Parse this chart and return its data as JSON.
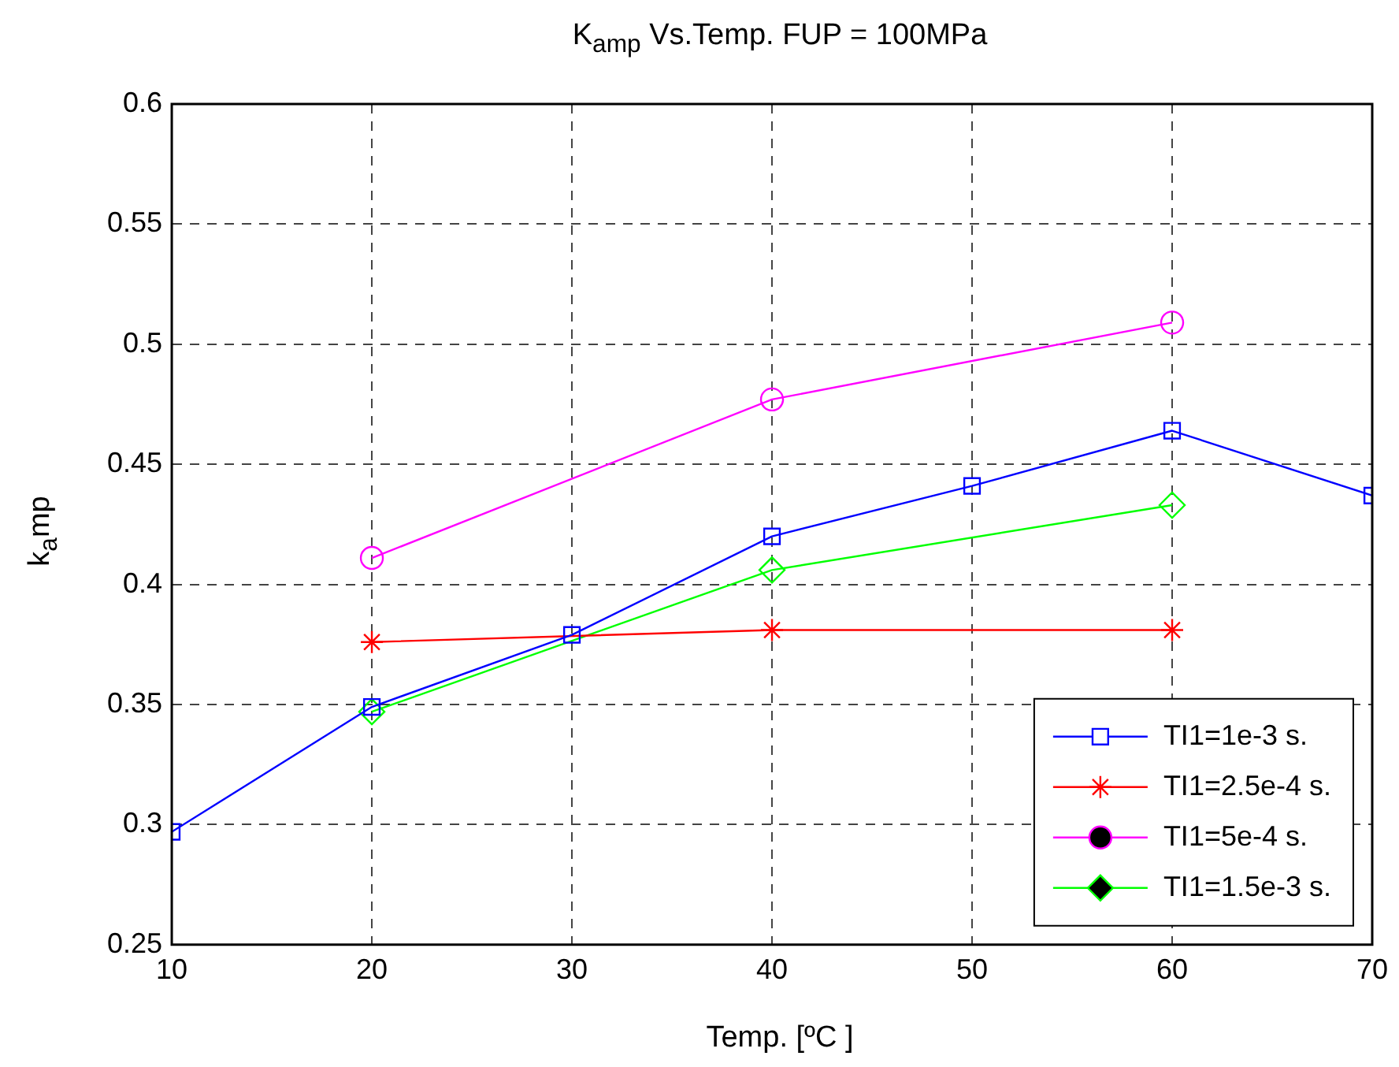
{
  "chart_data": {
    "type": "line",
    "title": "K$_{amp}$ Vs.Temp. FUP = 100MPa",
    "xlabel": "Temp. [ºC ]",
    "ylabel": "k$_{a}$mp",
    "xlim": [
      10,
      70
    ],
    "xticks": [
      10,
      20,
      30,
      40,
      50,
      60,
      70
    ],
    "ylim": [
      0.25,
      0.6
    ],
    "yticks": [
      0.25,
      0.3,
      0.35,
      0.4,
      0.45,
      0.5,
      0.55,
      0.6
    ],
    "grid": true,
    "legend": "bottom right",
    "line_style": "solid",
    "series": [
      {
        "name": "TI1=1e-3 s.",
        "color": "#0000ff",
        "marker": "square",
        "x": [
          10,
          20,
          30,
          40,
          50,
          60,
          70
        ],
        "values": [
          0.297,
          0.349,
          0.379,
          0.42,
          0.441,
          0.464,
          0.437
        ]
      },
      {
        "name": "TI1=2.5e-4 s.",
        "color": "#ff0000",
        "marker": "cross",
        "x": [
          20,
          40,
          60
        ],
        "values": [
          0.376,
          0.381,
          0.381
        ]
      },
      {
        "name": "TI1=5e-4 s.",
        "color": "#ff00ff",
        "marker": "circle",
        "x": [
          20,
          40,
          60
        ],
        "values": [
          0.411,
          0.477,
          0.509
        ]
      },
      {
        "name": "TI1=1.5e-3 s.",
        "color": "#00ff00",
        "marker": "diamond",
        "x": [
          20,
          40,
          60
        ],
        "values": [
          0.347,
          0.406,
          0.433
        ]
      }
    ]
  }
}
